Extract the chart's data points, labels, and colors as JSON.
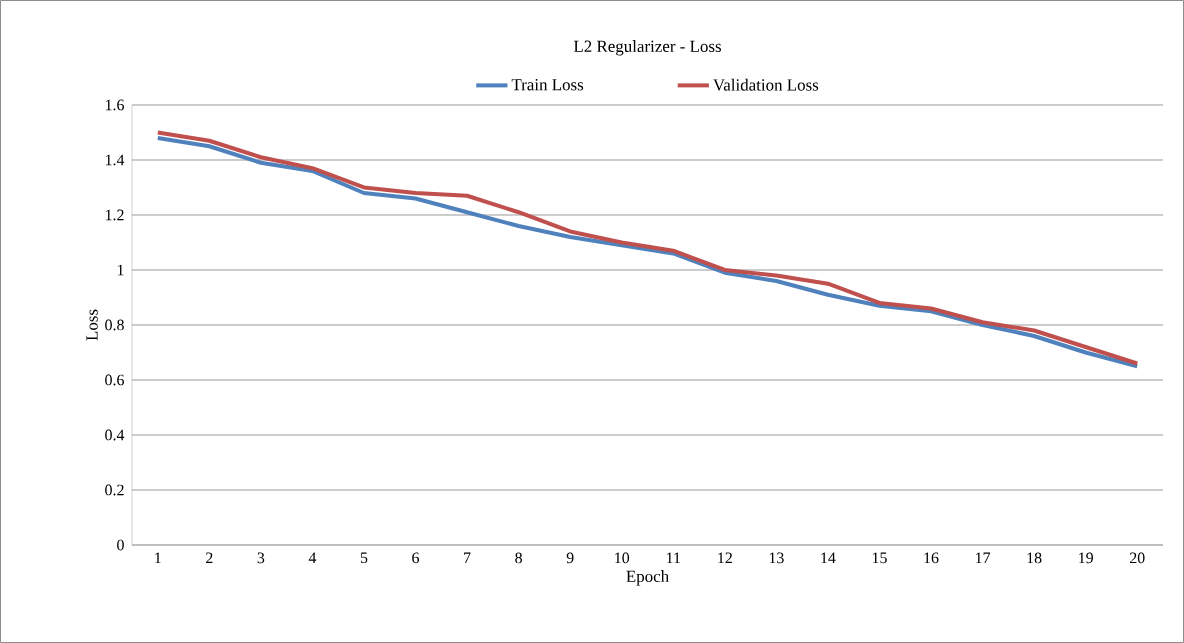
{
  "chart_data": {
    "type": "line",
    "title": "L2 Regularizer - Loss",
    "xlabel": "Epoch",
    "ylabel": "Loss",
    "categories": [
      "1",
      "2",
      "3",
      "4",
      "5",
      "6",
      "7",
      "8",
      "9",
      "10",
      "11",
      "12",
      "13",
      "14",
      "15",
      "16",
      "17",
      "18",
      "19",
      "20"
    ],
    "series": [
      {
        "name": "Train Loss",
        "color": "#4f81bd",
        "values": [
          1.48,
          1.45,
          1.39,
          1.36,
          1.28,
          1.26,
          1.21,
          1.16,
          1.12,
          1.09,
          1.06,
          0.99,
          0.96,
          0.91,
          0.87,
          0.85,
          0.8,
          0.76,
          0.7,
          0.65
        ]
      },
      {
        "name": "Validation Loss",
        "color": "#c0504d",
        "values": [
          1.5,
          1.47,
          1.41,
          1.37,
          1.3,
          1.28,
          1.27,
          1.21,
          1.14,
          1.1,
          1.07,
          1.0,
          0.98,
          0.95,
          0.88,
          0.86,
          0.81,
          0.78,
          0.72,
          0.66
        ]
      }
    ],
    "ylim": [
      0,
      1.6
    ],
    "yticks": [
      0,
      0.2,
      0.4,
      0.6,
      0.8,
      1,
      1.2,
      1.4,
      1.6
    ],
    "grid": "y",
    "legend": "top",
    "marker": "none",
    "line_style": "solid"
  }
}
